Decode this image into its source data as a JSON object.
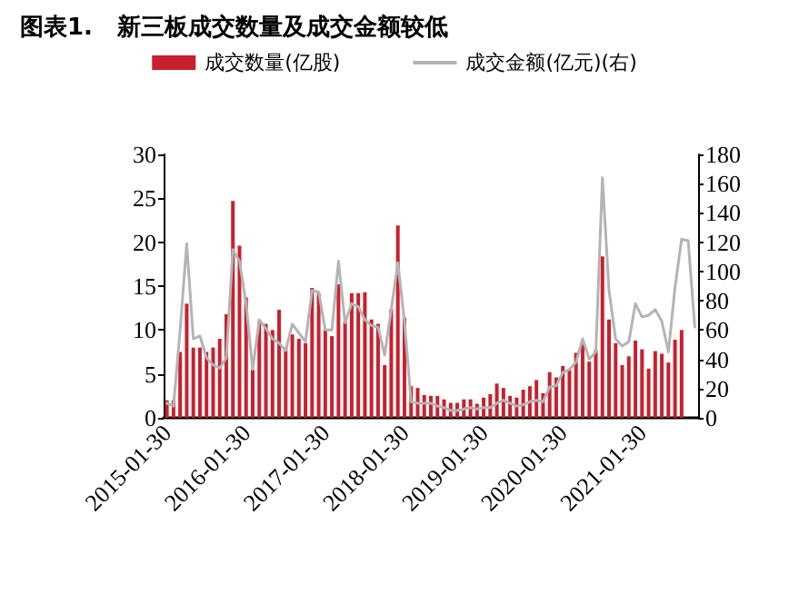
{
  "chart_data": {
    "type": "bar",
    "title": "图表1.   新三板成交数量及成交金额较低",
    "categories": [
      "2015-01-30",
      null,
      null,
      null,
      null,
      null,
      null,
      null,
      null,
      null,
      null,
      null,
      "2016-01-30",
      null,
      null,
      null,
      null,
      null,
      null,
      null,
      null,
      null,
      null,
      null,
      "2017-01-30",
      null,
      null,
      null,
      null,
      null,
      null,
      null,
      null,
      null,
      null,
      null,
      "2018-01-30",
      null,
      null,
      null,
      null,
      null,
      null,
      null,
      null,
      null,
      null,
      null,
      "2019-01-30",
      null,
      null,
      null,
      null,
      null,
      null,
      null,
      null,
      null,
      null,
      null,
      "2020-01-30",
      null,
      null,
      null,
      null,
      null,
      null,
      null,
      null,
      null,
      null,
      null,
      "2021-01-30",
      null,
      null,
      null,
      null,
      null,
      null,
      null,
      null
    ],
    "series": [
      {
        "name": "成交数量(亿股)",
        "color": "#c8202e",
        "values": [
          2,
          2,
          7.5,
          13,
          8,
          8,
          7.5,
          8,
          9,
          11.8,
          24.7,
          19.6,
          13.7,
          5.5,
          11,
          10.7,
          10,
          12.3,
          8,
          9.5,
          9,
          8.5,
          14.8,
          14.2,
          10,
          9.3,
          15.2,
          11,
          14.2,
          14.2,
          14.3,
          11.2,
          10.7,
          6,
          12.4,
          21.9,
          11.4,
          3.6,
          3.4,
          2.6,
          2.5,
          2.5,
          2.1,
          1.7,
          1.7,
          2.1,
          2.1,
          1.6,
          2.3,
          2.7,
          3.9,
          3.4,
          2.5,
          2.3,
          3.2,
          3.6,
          4.3,
          2.8,
          5.2,
          4.6,
          5.9,
          5.5,
          7.4,
          8.6,
          6.4,
          7.7,
          18.4,
          11.2,
          8.5,
          6,
          7,
          8.8,
          7.8,
          5.6,
          7.6,
          7.3,
          6.3,
          8.9,
          10,
          null,
          null
        ]
      },
      {
        "name": "成交金额(亿元)(右)",
        "type": "line",
        "axis": "y2",
        "color": "#b4b4b4",
        "values": [
          10,
          8,
          60,
          119,
          54,
          56,
          41,
          36,
          34,
          41,
          115,
          107,
          78,
          33,
          67,
          61,
          54,
          51,
          46,
          64,
          58,
          52,
          87,
          86,
          60,
          60,
          107,
          65,
          78,
          76,
          67,
          63,
          62,
          43,
          74,
          106,
          66,
          11,
          10,
          10,
          10,
          8,
          7,
          5,
          5,
          6,
          7,
          6,
          7,
          7,
          10,
          12,
          10,
          8,
          9,
          11,
          12,
          11,
          21,
          22,
          31,
          33,
          38,
          54,
          40,
          45,
          164,
          87,
          54,
          49,
          52,
          78,
          69,
          70,
          74,
          66,
          45,
          89,
          122,
          121,
          62
        ]
      }
    ],
    "ylim": [
      0,
      30
    ],
    "yticks": [
      0,
      5,
      10,
      15,
      20,
      25,
      30
    ],
    "y2lim": [
      0,
      180
    ],
    "y2ticks": [
      0,
      20,
      40,
      60,
      80,
      100,
      120,
      140,
      160,
      180
    ],
    "legend": "top",
    "grid": false,
    "marker": "none",
    "line_style": "solid"
  }
}
